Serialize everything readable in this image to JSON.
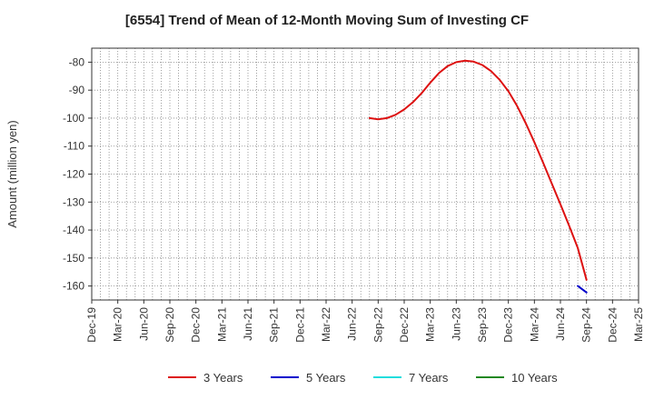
{
  "chart_data": {
    "type": "line",
    "title": "[6554]  Trend of Mean of 12-Month Moving Sum of Investing CF",
    "ylabel": "Amount (million yen)",
    "xlabel": "",
    "ylim": [
      -165,
      -75
    ],
    "yticks": [
      -80,
      -90,
      -100,
      -110,
      -120,
      -130,
      -140,
      -150,
      -160
    ],
    "x_tick_labels": [
      "Dec-19",
      "Mar-20",
      "Jun-20",
      "Sep-20",
      "Dec-20",
      "Mar-21",
      "Jun-21",
      "Sep-21",
      "Dec-21",
      "Mar-22",
      "Jun-22",
      "Sep-22",
      "Dec-22",
      "Mar-23",
      "Jun-23",
      "Sep-23",
      "Dec-23",
      "Mar-24",
      "Jun-24",
      "Sep-24",
      "Dec-24",
      "Mar-25"
    ],
    "grid": true,
    "legend_position": "bottom",
    "series": [
      {
        "name": "3 Years",
        "color": "#dd1111",
        "x": [
          "2022-08",
          "2022-09",
          "2022-10",
          "2022-11",
          "2022-12",
          "2023-01",
          "2023-02",
          "2023-03",
          "2023-04",
          "2023-05",
          "2023-06",
          "2023-07",
          "2023-08",
          "2023-09",
          "2023-10",
          "2023-11",
          "2023-12",
          "2024-01",
          "2024-02",
          "2024-03",
          "2024-04",
          "2024-05",
          "2024-06",
          "2024-07",
          "2024-08",
          "2024-09"
        ],
        "values": [
          -100.0,
          -100.4,
          -100.0,
          -98.8,
          -96.9,
          -94.3,
          -91.1,
          -87.3,
          -83.9,
          -81.4,
          -80.0,
          -79.5,
          -79.8,
          -81.0,
          -83.2,
          -86.3,
          -90.4,
          -95.6,
          -101.8,
          -108.6,
          -115.9,
          -123.3,
          -130.8,
          -138.5,
          -146.4,
          -157.8
        ]
      },
      {
        "name": "5 Years",
        "color": "#0000cc",
        "x": [
          "2024-08",
          "2024-09"
        ],
        "values": [
          -160.0,
          -162.3
        ]
      },
      {
        "name": "7 Years",
        "color": "#22dddd",
        "x": [],
        "values": []
      },
      {
        "name": "10 Years",
        "color": "#228822",
        "x": [],
        "values": []
      }
    ]
  }
}
